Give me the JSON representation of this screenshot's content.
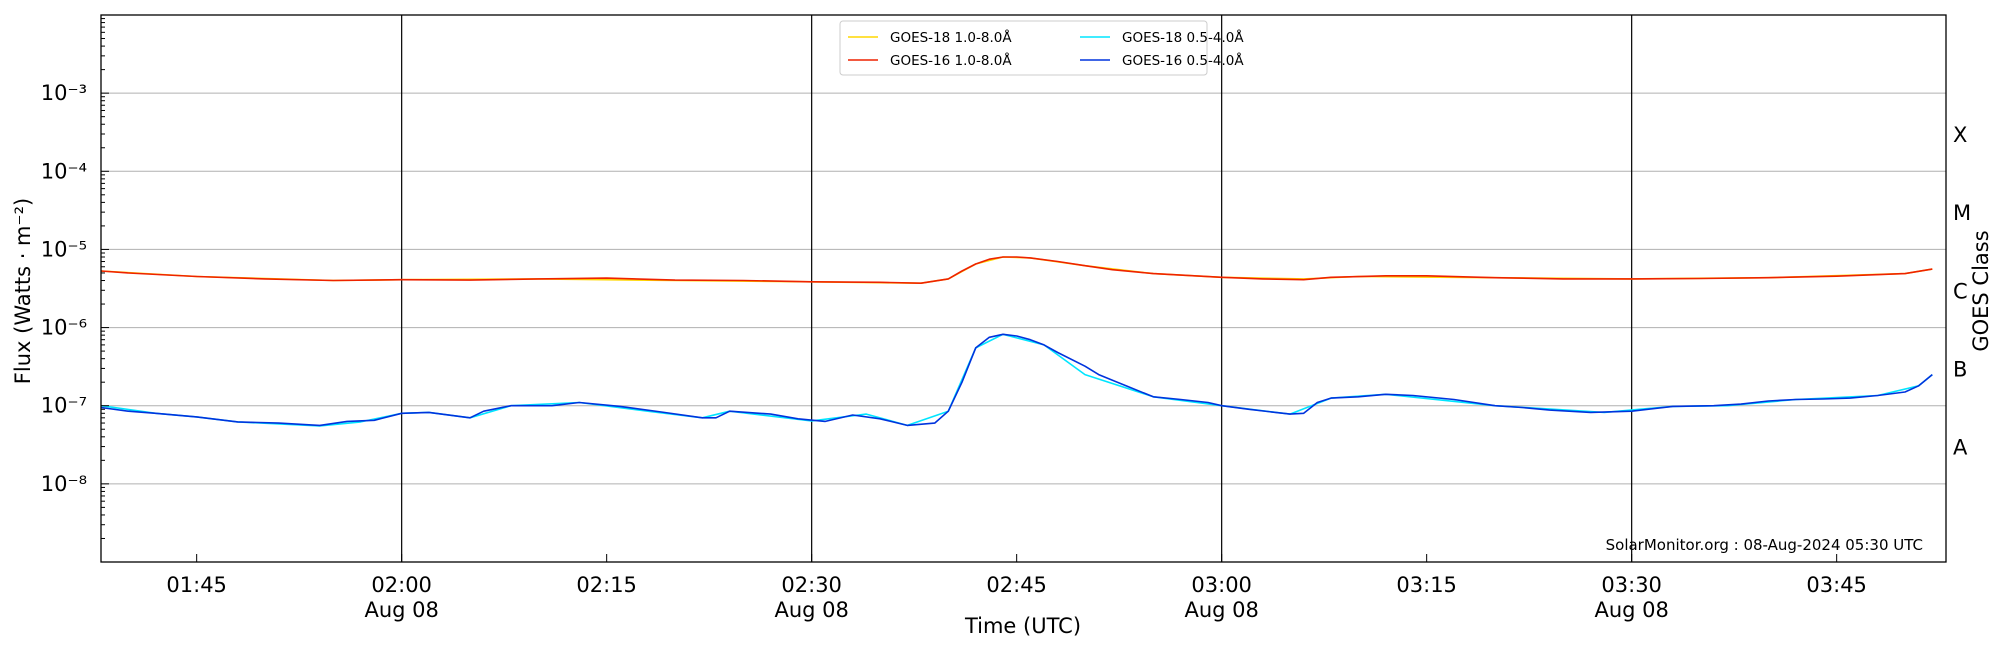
{
  "chart_data": {
    "type": "line",
    "xlabel": "Time (UTC)",
    "ylabel": "Flux (Watts · m⁻²)",
    "right_axis_label": "GOES Class",
    "y_scale": "log",
    "ylim": [
      1e-09,
      0.01
    ],
    "xlim": [
      "2024-08-08 01:38",
      "2024-08-08 03:53"
    ],
    "grid": {
      "horizontal": true,
      "vertical_at": [
        "02:00",
        "02:30",
        "03:00",
        "03:30"
      ]
    },
    "y_ticks": [
      {
        "value": 1e-08,
        "label": "10⁻⁸"
      },
      {
        "value": 1e-07,
        "label": "10⁻⁷"
      },
      {
        "value": 1e-06,
        "label": "10⁻⁶"
      },
      {
        "value": 1e-05,
        "label": "10⁻⁵"
      },
      {
        "value": 0.0001,
        "label": "10⁻⁴"
      },
      {
        "value": 0.001,
        "label": "10⁻³"
      }
    ],
    "x_ticks": [
      {
        "time": "01:45",
        "label": "01:45",
        "sublabel": ""
      },
      {
        "time": "02:00",
        "label": "02:00",
        "sublabel": "Aug 08"
      },
      {
        "time": "02:15",
        "label": "02:15",
        "sublabel": ""
      },
      {
        "time": "02:30",
        "label": "02:30",
        "sublabel": "Aug 08"
      },
      {
        "time": "02:45",
        "label": "02:45",
        "sublabel": ""
      },
      {
        "time": "03:00",
        "label": "03:00",
        "sublabel": "Aug 08"
      },
      {
        "time": "03:15",
        "label": "03:15",
        "sublabel": ""
      },
      {
        "time": "03:30",
        "label": "03:30",
        "sublabel": "Aug 08"
      },
      {
        "time": "03:45",
        "label": "03:45",
        "sublabel": ""
      }
    ],
    "goes_classes": [
      {
        "label": "A",
        "value": 3e-08
      },
      {
        "label": "B",
        "value": 3e-07
      },
      {
        "label": "C",
        "value": 3e-06
      },
      {
        "label": "M",
        "value": 3e-05
      },
      {
        "label": "X",
        "value": 0.0003
      }
    ],
    "legend_position": "top-center",
    "credit": "SolarMonitor.org : 08-Aug-2024 05:30 UTC",
    "series": [
      {
        "name": "GOES-18 1.0-8.0Å",
        "color": "#ffd700",
        "points": [
          [
            "01:38",
            5.3e-06
          ],
          [
            "01:45",
            4.5e-06
          ],
          [
            "01:55",
            4e-06
          ],
          [
            "02:00",
            4.1e-06
          ],
          [
            "02:10",
            4.2e-06
          ],
          [
            "02:20",
            4e-06
          ],
          [
            "02:30",
            3.85e-06
          ],
          [
            "02:38",
            3.7e-06
          ],
          [
            "02:40",
            4.2e-06
          ],
          [
            "02:42",
            6.5e-06
          ],
          [
            "02:44",
            8e-06
          ],
          [
            "02:46",
            7.8e-06
          ],
          [
            "02:50",
            6.2e-06
          ],
          [
            "02:55",
            4.9e-06
          ],
          [
            "03:00",
            4.4e-06
          ],
          [
            "03:06",
            4.2e-06
          ],
          [
            "03:10",
            4.5e-06
          ],
          [
            "03:20",
            4.35e-06
          ],
          [
            "03:30",
            4.2e-06
          ],
          [
            "03:40",
            4.35e-06
          ],
          [
            "03:50",
            4.9e-06
          ],
          [
            "03:52",
            5.6e-06
          ]
        ]
      },
      {
        "name": "GOES-16 1.0-8.0Å",
        "color": "#ee2200",
        "points": [
          [
            "01:38",
            5.3e-06
          ],
          [
            "01:40",
            5e-06
          ],
          [
            "01:45",
            4.5e-06
          ],
          [
            "01:50",
            4.2e-06
          ],
          [
            "01:55",
            4e-06
          ],
          [
            "02:00",
            4.1e-06
          ],
          [
            "02:05",
            4.05e-06
          ],
          [
            "02:10",
            4.2e-06
          ],
          [
            "02:15",
            4.3e-06
          ],
          [
            "02:20",
            4.05e-06
          ],
          [
            "02:25",
            4e-06
          ],
          [
            "02:30",
            3.85e-06
          ],
          [
            "02:35",
            3.8e-06
          ],
          [
            "02:38",
            3.7e-06
          ],
          [
            "02:40",
            4.2e-06
          ],
          [
            "02:41",
            5.3e-06
          ],
          [
            "02:42",
            6.5e-06
          ],
          [
            "02:43",
            7.5e-06
          ],
          [
            "02:44",
            8e-06
          ],
          [
            "02:45",
            8e-06
          ],
          [
            "02:46",
            7.8e-06
          ],
          [
            "02:48",
            7e-06
          ],
          [
            "02:50",
            6.2e-06
          ],
          [
            "02:52",
            5.5e-06
          ],
          [
            "02:55",
            4.9e-06
          ],
          [
            "03:00",
            4.4e-06
          ],
          [
            "03:03",
            4.2e-06
          ],
          [
            "03:06",
            4.1e-06
          ],
          [
            "03:08",
            4.4e-06
          ],
          [
            "03:12",
            4.6e-06
          ],
          [
            "03:15",
            4.6e-06
          ],
          [
            "03:20",
            4.35e-06
          ],
          [
            "03:25",
            4.2e-06
          ],
          [
            "03:30",
            4.2e-06
          ],
          [
            "03:35",
            4.25e-06
          ],
          [
            "03:40",
            4.35e-06
          ],
          [
            "03:45",
            4.55e-06
          ],
          [
            "03:50",
            4.9e-06
          ],
          [
            "03:52",
            5.6e-06
          ]
        ]
      },
      {
        "name": "GOES-18 0.5-4.0Å",
        "color": "#00e5ff",
        "points": [
          [
            "01:38",
            1e-07
          ],
          [
            "01:42",
            8e-08
          ],
          [
            "01:45",
            7.2e-08
          ],
          [
            "01:48",
            6.2e-08
          ],
          [
            "01:54",
            5.5e-08
          ],
          [
            "01:57",
            6.2e-08
          ],
          [
            "02:00",
            8e-08
          ],
          [
            "02:02",
            8.2e-08
          ],
          [
            "02:05",
            7e-08
          ],
          [
            "02:08",
            1e-07
          ],
          [
            "02:13",
            1.1e-07
          ],
          [
            "02:18",
            8.5e-08
          ],
          [
            "02:22",
            7e-08
          ],
          [
            "02:24",
            8.5e-08
          ],
          [
            "02:30",
            6.4e-08
          ],
          [
            "02:34",
            7.8e-08
          ],
          [
            "02:37",
            5.6e-08
          ],
          [
            "02:40",
            8.5e-08
          ],
          [
            "02:42",
            5.5e-07
          ],
          [
            "02:44",
            8.2e-07
          ],
          [
            "02:47",
            6e-07
          ],
          [
            "02:50",
            2.5e-07
          ],
          [
            "02:55",
            1.3e-07
          ],
          [
            "03:00",
            1e-07
          ],
          [
            "03:05",
            7.8e-08
          ],
          [
            "03:08",
            1.25e-07
          ],
          [
            "03:12",
            1.4e-07
          ],
          [
            "03:20",
            1e-07
          ],
          [
            "03:28",
            8.2e-08
          ],
          [
            "03:33",
            9.8e-08
          ],
          [
            "03:37",
            1e-07
          ],
          [
            "03:42",
            1.2e-07
          ],
          [
            "03:48",
            1.35e-07
          ],
          [
            "03:51",
            1.8e-07
          ],
          [
            "03:52",
            2.5e-07
          ]
        ]
      },
      {
        "name": "GOES-16 0.5-4.0Å",
        "color": "#0033dd",
        "points": [
          [
            "01:38",
            9.5e-08
          ],
          [
            "01:40",
            8.5e-08
          ],
          [
            "01:42",
            8e-08
          ],
          [
            "01:45",
            7.2e-08
          ],
          [
            "01:48",
            6.2e-08
          ],
          [
            "01:51",
            6e-08
          ],
          [
            "01:54",
            5.6e-08
          ],
          [
            "01:56",
            6.3e-08
          ],
          [
            "01:58",
            6.5e-08
          ],
          [
            "02:00",
            8e-08
          ],
          [
            "02:02",
            8.2e-08
          ],
          [
            "02:05",
            7e-08
          ],
          [
            "02:06",
            8.5e-08
          ],
          [
            "02:08",
            1e-07
          ],
          [
            "02:11",
            1e-07
          ],
          [
            "02:13",
            1.1e-07
          ],
          [
            "02:16",
            9.8e-08
          ],
          [
            "02:19",
            8.3e-08
          ],
          [
            "02:22",
            7e-08
          ],
          [
            "02:23",
            7e-08
          ],
          [
            "02:24",
            8.5e-08
          ],
          [
            "02:27",
            7.8e-08
          ],
          [
            "02:29",
            6.8e-08
          ],
          [
            "02:31",
            6.3e-08
          ],
          [
            "02:33",
            7.6e-08
          ],
          [
            "02:35",
            6.8e-08
          ],
          [
            "02:37",
            5.6e-08
          ],
          [
            "02:39",
            6e-08
          ],
          [
            "02:40",
            8.5e-08
          ],
          [
            "02:41",
            2e-07
          ],
          [
            "02:42",
            5.5e-07
          ],
          [
            "02:43",
            7.5e-07
          ],
          [
            "02:44",
            8.2e-07
          ],
          [
            "02:45",
            7.8e-07
          ],
          [
            "02:46",
            7e-07
          ],
          [
            "02:47",
            6e-07
          ],
          [
            "02:48",
            4.8e-07
          ],
          [
            "02:50",
            3.2e-07
          ],
          [
            "02:51",
            2.5e-07
          ],
          [
            "02:53",
            1.8e-07
          ],
          [
            "02:55",
            1.3e-07
          ],
          [
            "02:57",
            1.2e-07
          ],
          [
            "02:59",
            1.1e-07
          ],
          [
            "03:00",
            1e-07
          ],
          [
            "03:02",
            9e-08
          ],
          [
            "03:05",
            7.8e-08
          ],
          [
            "03:06",
            8e-08
          ],
          [
            "03:07",
            1.1e-07
          ],
          [
            "03:08",
            1.25e-07
          ],
          [
            "03:10",
            1.3e-07
          ],
          [
            "03:12",
            1.4e-07
          ],
          [
            "03:14",
            1.35e-07
          ],
          [
            "03:17",
            1.2e-07
          ],
          [
            "03:20",
            1e-07
          ],
          [
            "03:22",
            9.5e-08
          ],
          [
            "03:24",
            8.8e-08
          ],
          [
            "03:27",
            8.2e-08
          ],
          [
            "03:30",
            8.5e-08
          ],
          [
            "03:33",
            9.8e-08
          ],
          [
            "03:36",
            1e-07
          ],
          [
            "03:38",
            1.05e-07
          ],
          [
            "03:40",
            1.15e-07
          ],
          [
            "03:42",
            1.2e-07
          ],
          [
            "03:44",
            1.22e-07
          ],
          [
            "03:46",
            1.25e-07
          ],
          [
            "03:48",
            1.35e-07
          ],
          [
            "03:50",
            1.5e-07
          ],
          [
            "03:51",
            1.8e-07
          ],
          [
            "03:52",
            2.5e-07
          ]
        ]
      }
    ]
  }
}
